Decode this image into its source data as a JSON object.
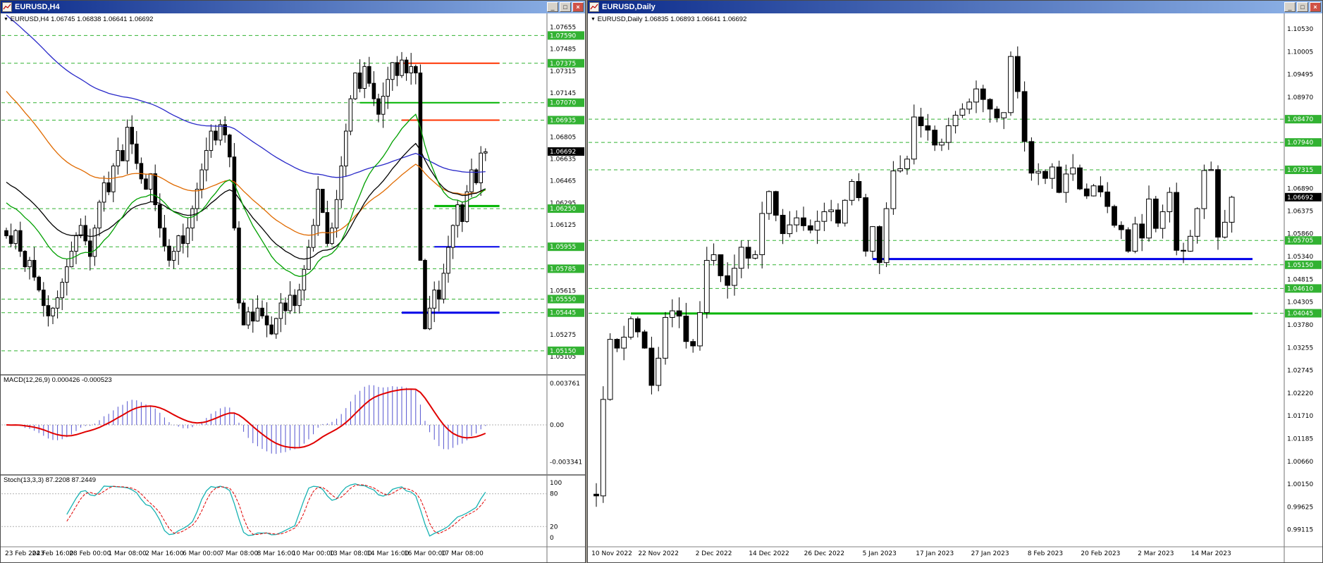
{
  "windows": {
    "left": {
      "title": "EURUSD,H4",
      "ohlc_line": "EURUSD,H4 1.06745 1.06838 1.06641 1.06692",
      "controls": {
        "minimize": "_",
        "restore": "□",
        "close": "×"
      }
    },
    "right": {
      "title": "EURUSD,Daily",
      "ohlc_line": "EURUSD,Daily 1.06835 1.06893 1.06641 1.06692",
      "controls": {
        "minimize": "_",
        "restore": "□",
        "close": "×"
      }
    }
  },
  "chart_data": [
    {
      "type": "candlestick",
      "symbol": "EURUSD",
      "timeframe": "H4",
      "open": 1.06745,
      "high": 1.06838,
      "low": 1.06641,
      "close": 1.06692,
      "current_price": 1.06692,
      "y_range": [
        1.0498,
        1.0775
      ],
      "colors": {
        "up": "#ffffff",
        "down": "#000000",
        "level": "#32b232"
      },
      "y_ticks": [
        1.07655,
        1.07485,
        1.07315,
        1.07145,
        1.06975,
        1.06805,
        1.06635,
        1.06465,
        1.06295,
        1.06125,
        1.05955,
        1.05785,
        1.05615,
        1.05445,
        1.05275,
        1.05105
      ],
      "levels": [
        1.0759,
        1.07375,
        1.0707,
        1.06935,
        1.0625,
        1.05955,
        1.05785,
        1.0555,
        1.05445,
        1.0515
      ],
      "closes": [
        1.0604,
        1.0598,
        1.0608,
        1.0592,
        1.058,
        1.0585,
        1.0572,
        1.0562,
        1.055,
        1.0542,
        1.0548,
        1.0556,
        1.0568,
        1.058,
        1.0592,
        1.0604,
        1.0612,
        1.06,
        1.0588,
        1.061,
        1.063,
        1.0645,
        1.0638,
        1.0658,
        1.067,
        1.0662,
        1.0688,
        1.0675,
        1.066,
        1.0648,
        1.064,
        1.0652,
        1.0628,
        1.061,
        1.0596,
        1.0585,
        1.0592,
        1.0604,
        1.0598,
        1.061,
        1.0625,
        1.064,
        1.0655,
        1.067,
        1.0685,
        1.0678,
        1.069,
        1.0682,
        1.0665,
        1.061,
        1.0552,
        1.0535,
        1.0545,
        1.0538,
        1.0548,
        1.0542,
        1.0535,
        1.0528,
        1.054,
        1.0552,
        1.0546,
        1.0558,
        1.055,
        1.0562,
        1.0578,
        1.0595,
        1.0612,
        1.064,
        1.0622,
        1.0598,
        1.061,
        1.0632,
        1.0658,
        1.0685,
        1.071,
        1.073,
        1.0718,
        1.0735,
        1.0722,
        1.071,
        1.0698,
        1.0712,
        1.0725,
        1.0738,
        1.0728,
        1.074,
        1.073,
        1.0735,
        1.073,
        1.0585,
        1.0532,
        1.0548,
        1.0562,
        1.0555,
        1.0575,
        1.0595,
        1.0612,
        1.0628,
        1.0615,
        1.0638,
        1.0655,
        1.0645,
        1.0668,
        1.0669
      ],
      "x_labels": [
        {
          "i": 2,
          "t": "23 Feb 2023"
        },
        {
          "i": 10,
          "t": "24 Feb 16:00"
        },
        {
          "i": 18,
          "t": "28 Feb 00:00"
        },
        {
          "i": 26,
          "t": "1 Mar 08:00"
        },
        {
          "i": 34,
          "t": "2 Mar 16:00"
        },
        {
          "i": 42,
          "t": "6 Mar 00:00"
        },
        {
          "i": 50,
          "t": "7 Mar 08:00"
        },
        {
          "i": 58,
          "t": "8 Mar 16:00"
        },
        {
          "i": 66,
          "t": "10 Mar 00:00"
        },
        {
          "i": 74,
          "t": "13 Mar 08:00"
        },
        {
          "i": 82,
          "t": "14 Mar 16:00"
        },
        {
          "i": 90,
          "t": "16 Mar 00:00"
        },
        {
          "i": 98,
          "t": "17 Mar 08:00"
        }
      ],
      "mas": [
        {
          "color": "#2828c8",
          "period": 110,
          "seed": 1.0778
        },
        {
          "color": "#e06a00",
          "period": 55,
          "seed": 1.072
        },
        {
          "color": "#000000",
          "period": 34,
          "seed": 1.0648
        },
        {
          "color": "#00a000",
          "period": 21,
          "seed": 1.0632
        }
      ],
      "segments": [
        {
          "v": 1.07375,
          "i0": 84,
          "i1": 106,
          "color": "#ff3300",
          "w": 2
        },
        {
          "v": 1.06935,
          "i0": 85,
          "i1": 106,
          "color": "#ff3300",
          "w": 2
        },
        {
          "v": 1.0707,
          "i0": 76,
          "i1": 106,
          "color": "#00b400",
          "w": 2
        },
        {
          "v": 1.0627,
          "i0": 92,
          "i1": 106,
          "color": "#00b400",
          "w": 3
        },
        {
          "v": 1.05955,
          "i0": 92,
          "i1": 106,
          "color": "#0000e8",
          "w": 2
        },
        {
          "v": 1.05445,
          "i0": 85,
          "i1": 106,
          "color": "#0000e8",
          "w": 3
        }
      ],
      "indicators": [
        {
          "name": "MACD",
          "title": "MACD(12,26,9) 0.000426 -0.000523",
          "params": [
            12,
            26,
            9
          ],
          "values": [
            0.000426,
            -0.000523
          ],
          "axis": [
            {
              "v": 0.003761,
              "label": "0.003761"
            },
            {
              "v": 0,
              "label": "0.00"
            },
            {
              "v": -0.003341,
              "label": "-0.003341"
            }
          ]
        },
        {
          "name": "Stochastic",
          "title": "Stoch(13,3,3) 87.2208 87.2449",
          "params": [
            13,
            3,
            3
          ],
          "values": [
            87.2208,
            87.2449
          ],
          "axis": [
            {
              "v": 100,
              "label": "100"
            },
            {
              "v": 80,
              "label": "80"
            },
            {
              "v": 20,
              "label": "20"
            },
            {
              "v": 0,
              "label": "0"
            }
          ],
          "level_lines": [
            80,
            20
          ]
        }
      ]
    },
    {
      "type": "candlestick",
      "symbol": "EURUSD",
      "timeframe": "Daily",
      "open": 1.06835,
      "high": 1.06893,
      "low": 1.06641,
      "close": 1.06692,
      "current_price": 1.06692,
      "y_range": [
        0.988,
        1.1085
      ],
      "colors": {
        "up": "#ffffff",
        "down": "#000000",
        "level": "#32b232"
      },
      "y_ticks": [
        1.1053,
        1.10005,
        1.09495,
        1.0897,
        1.08445,
        1.07935,
        1.07415,
        1.0689,
        1.06375,
        1.0586,
        1.0534,
        1.04815,
        1.04305,
        1.0378,
        1.03255,
        1.02745,
        1.0222,
        1.0171,
        1.01185,
        1.0066,
        1.0015,
        0.99625,
        0.99115
      ],
      "levels": [
        1.0847,
        1.0794,
        1.07315,
        1.05705,
        1.0515,
        1.0461,
        1.04045
      ],
      "closes": [
        0.9988,
        1.0208,
        1.0345,
        1.0325,
        1.035,
        1.0392,
        1.0362,
        1.0325,
        1.024,
        1.0302,
        1.0395,
        1.041,
        1.0398,
        1.034,
        1.033,
        1.0406,
        1.0525,
        1.0538,
        1.049,
        1.0468,
        1.0507,
        1.0555,
        1.053,
        1.0538,
        1.0632,
        1.0682,
        1.0628,
        1.0586,
        1.0606,
        1.0622,
        1.0604,
        1.0594,
        1.0614,
        1.0636,
        1.064,
        1.061,
        1.0662,
        1.0705,
        1.0668,
        1.0546,
        1.0602,
        1.052,
        1.0643,
        1.0729,
        1.0734,
        1.0756,
        1.0852,
        1.0832,
        1.0822,
        1.0788,
        1.0794,
        1.0832,
        1.0856,
        1.087,
        1.0886,
        1.0916,
        1.0892,
        1.087,
        1.085,
        1.0862,
        1.099,
        1.091,
        1.0796,
        1.0724,
        1.0728,
        1.0712,
        1.0738,
        1.068,
        1.0722,
        1.0736,
        1.0688,
        1.0672,
        1.0695,
        1.0681,
        1.0648,
        1.0605,
        1.0595,
        1.0546,
        1.0608,
        1.0576,
        1.0665,
        1.0598,
        1.0636,
        1.068,
        1.0548,
        1.0546,
        1.058,
        1.0643,
        1.073,
        1.0732,
        1.0578,
        1.0612,
        1.0669
      ],
      "x_labels": [
        {
          "i": 1,
          "t": "10 Nov 2022"
        },
        {
          "i": 9,
          "t": "22 Nov 2022"
        },
        {
          "i": 17,
          "t": "2 Dec 2022"
        },
        {
          "i": 25,
          "t": "14 Dec 2022"
        },
        {
          "i": 33,
          "t": "26 Dec 2022"
        },
        {
          "i": 41,
          "t": "5 Jan 2023"
        },
        {
          "i": 49,
          "t": "17 Jan 2023"
        },
        {
          "i": 57,
          "t": "27 Jan 2023"
        },
        {
          "i": 65,
          "t": "8 Feb 2023"
        },
        {
          "i": 73,
          "t": "20 Feb 2023"
        },
        {
          "i": 81,
          "t": "2 Mar 2023"
        },
        {
          "i": 89,
          "t": "14 Mar 2023"
        }
      ],
      "mas": [],
      "segments": [
        {
          "v": 1.0528,
          "i0": 40,
          "i1": 95,
          "color": "#0000e8",
          "w": 3
        },
        {
          "v": 1.0404,
          "i0": 5,
          "i1": 95,
          "color": "#00b400",
          "w": 3
        }
      ],
      "indicators": []
    }
  ]
}
